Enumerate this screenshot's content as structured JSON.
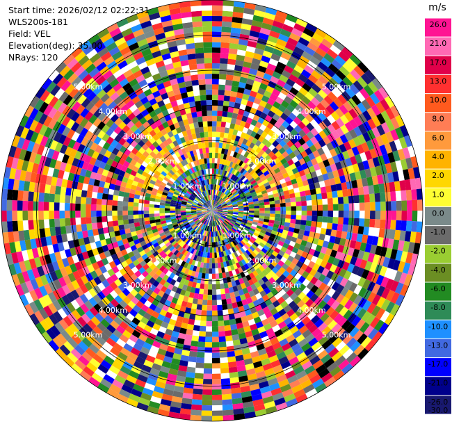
{
  "header": {
    "start_time": "Start time: 2026/02/12 02:22:31",
    "instrument": "WLS200s-181",
    "field": "Field: VEL",
    "elevation": "Elevation(deg): 35.00",
    "nrays": "NRays: 120"
  },
  "chart_data": {
    "type": "heatmap",
    "projection": "polar PPI",
    "field": "VEL",
    "elevation_deg": 35.0,
    "n_rays": 120,
    "max_range_km": 6.0,
    "range_rings_km": [
      1,
      2,
      3,
      4,
      5,
      6
    ],
    "range_labels": [
      "1.00km",
      "2.00km",
      "3.00km",
      "4.00km",
      "5.00km"
    ],
    "colorbar": {
      "unit": "m/s",
      "ticks": [
        "26.0",
        "21.0",
        "17.0",
        "13.0",
        "10.0",
        "8.0",
        "6.0",
        "4.0",
        "2.0",
        "1.0",
        "0.0",
        "-1.0",
        "-2.0",
        "-4.0",
        "-6.0",
        "-8.0",
        "-10.0",
        "-13.0",
        "-17.0",
        "-21.0",
        "-26.0",
        "-30.0"
      ],
      "colors": [
        "#ff1493",
        "#ff69b4",
        "#e0004a",
        "#ff3030",
        "#ff5a1e",
        "#ff7d55",
        "#ff9a3c",
        "#ffb300",
        "#ffd700",
        "#ffff33",
        "#7a8a8a",
        "#6b6b6b",
        "#9acd32",
        "#6b8e23",
        "#228b22",
        "#2e8b57",
        "#1e90ff",
        "#4169e1",
        "#0000ff",
        "#00008b",
        "#191970"
      ]
    }
  }
}
